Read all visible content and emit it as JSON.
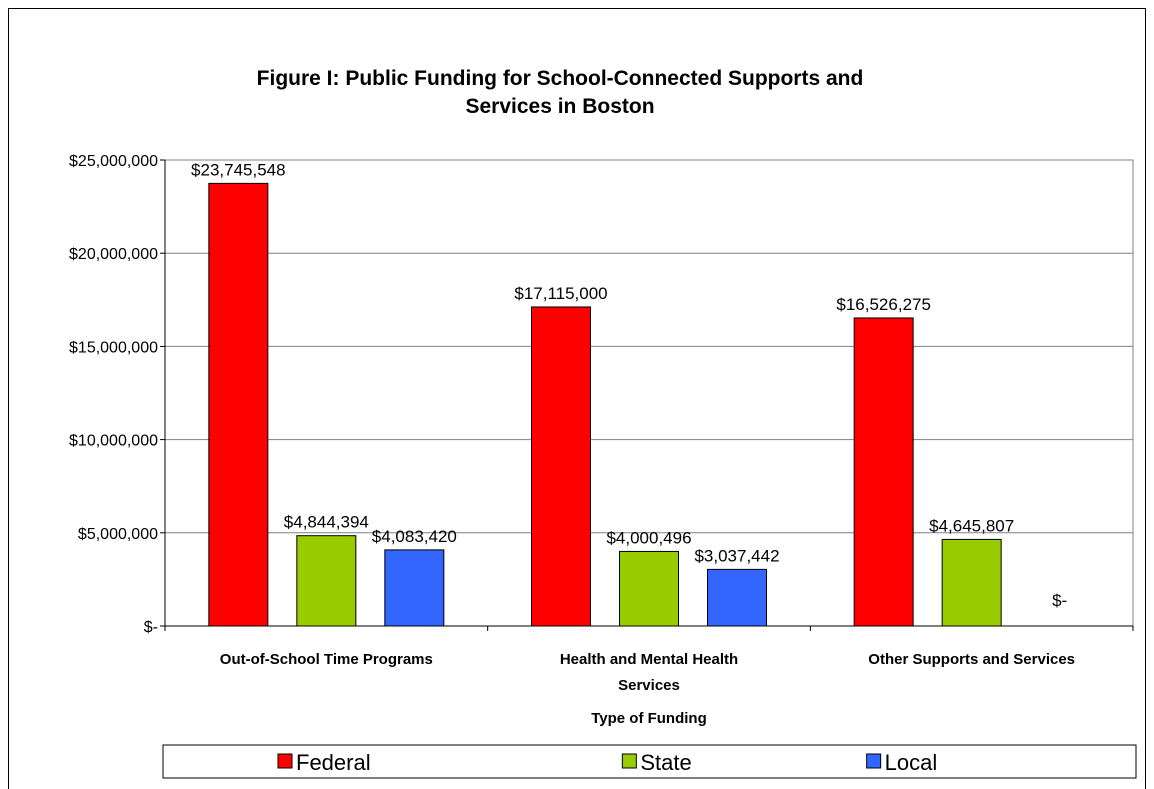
{
  "chart_data": {
    "type": "bar",
    "title": [
      "Figure I: Public Funding for School-Connected Supports and",
      "Services in Boston"
    ],
    "xlabel": "Type of Funding",
    "ylabel": "",
    "ylim": [
      0,
      25000000
    ],
    "yticks": [
      {
        "value": 0,
        "label": "$-"
      },
      {
        "value": 5000000,
        "label": "$5,000,000"
      },
      {
        "value": 10000000,
        "label": "$10,000,000"
      },
      {
        "value": 15000000,
        "label": "$15,000,000"
      },
      {
        "value": 20000000,
        "label": "$20,000,000"
      },
      {
        "value": 25000000,
        "label": "$25,000,000"
      }
    ],
    "grid": true,
    "legend_position": "bottom",
    "categories": [
      [
        "Out-of-School Time Programs"
      ],
      [
        "Health and Mental Health",
        "Services"
      ],
      [
        "Other Supports and Services"
      ]
    ],
    "series": [
      {
        "name": "Federal",
        "color": "#ff0000",
        "values": [
          23745548,
          17115000,
          16526275
        ],
        "labels": [
          "$23,745,548",
          "$17,115,000",
          "$16,526,275"
        ]
      },
      {
        "name": "State",
        "color": "#99cc00",
        "values": [
          4844394,
          4000496,
          4645807
        ],
        "labels": [
          "$4,844,394",
          "$4,000,496",
          "$4,645,807"
        ]
      },
      {
        "name": "Local",
        "color": "#3366ff",
        "values": [
          4083420,
          3037442,
          0
        ],
        "labels": [
          "$4,083,420",
          "$3,037,442",
          "$-"
        ]
      }
    ]
  }
}
